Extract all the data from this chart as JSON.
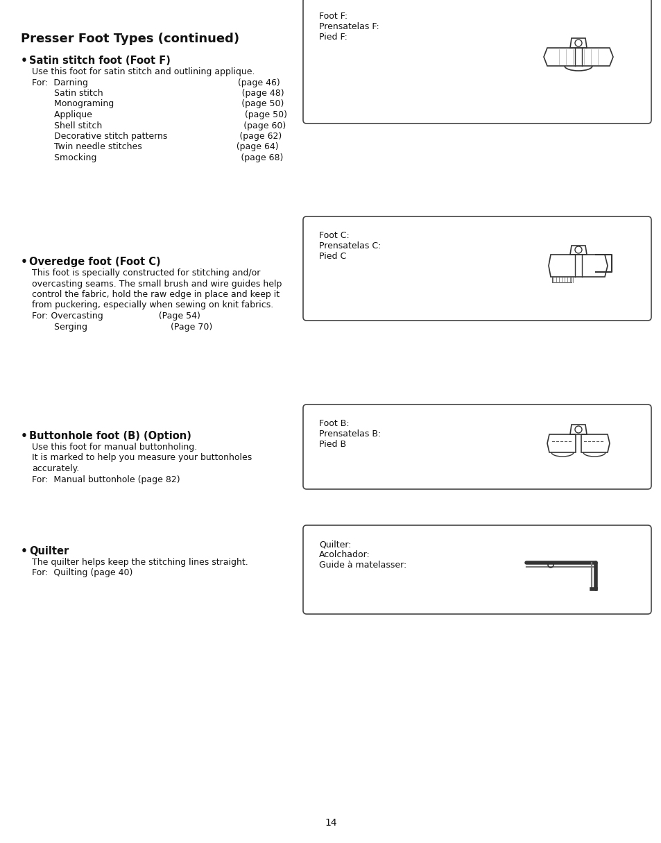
{
  "bg_color": "#ffffff",
  "page_number": "14",
  "title": "Presser Foot Types (continued)",
  "sections": [
    {
      "bullet": true,
      "heading": "Satin stitch foot (Foot F)",
      "text_lines": [
        "Use this foot for satin stitch and outlining applique.",
        "For:  Darning                                                      (page 46)",
        "        Satin stitch                                                  (page 48)",
        "        Monograming                                              (page 50)",
        "        Applique                                                       (page 50)",
        "        Shell stitch                                                   (page 60)",
        "        Decorative stitch patterns                          (page 62)",
        "        Twin needle stitches                                  (page 64)",
        "        Smocking                                                    (page 68)"
      ],
      "box_label": "Foot F:\nPrensatelas F:\nPied F:",
      "box_type": "foot_F"
    },
    {
      "bullet": true,
      "heading": "Overedge foot (Foot C)",
      "text_lines": [
        "This foot is specially constructed for stitching and/or",
        "overcasting seams. The small brush and wire guides help",
        "control the fabric, hold the raw edge in place and keep it",
        "from puckering, especially when sewing on knit fabrics.",
        "For: Overcasting                    (Page 54)",
        "        Serging                              (Page 70)"
      ],
      "box_label": "Foot C:\nPrensatelas C:\nPied C",
      "box_type": "foot_C"
    },
    {
      "bullet": true,
      "heading": "Buttonhole foot (B) (Option)",
      "text_lines": [
        "Use this foot for manual buttonholing.",
        "It is marked to help you measure your buttonholes",
        "accurately.",
        "For:  Manual buttonhole (page 82)"
      ],
      "box_label": "Foot B:\nPrensatelas B:\nPied B",
      "box_type": "foot_B"
    },
    {
      "bullet": true,
      "heading": "Quilter",
      "text_lines": [
        "The quilter helps keep the stitching lines straight.",
        "For:  Quilting (page 40)"
      ],
      "box_label": "Quilter:\nAcolchador:\nGuide à matelasser:",
      "box_type": "quilter"
    }
  ]
}
